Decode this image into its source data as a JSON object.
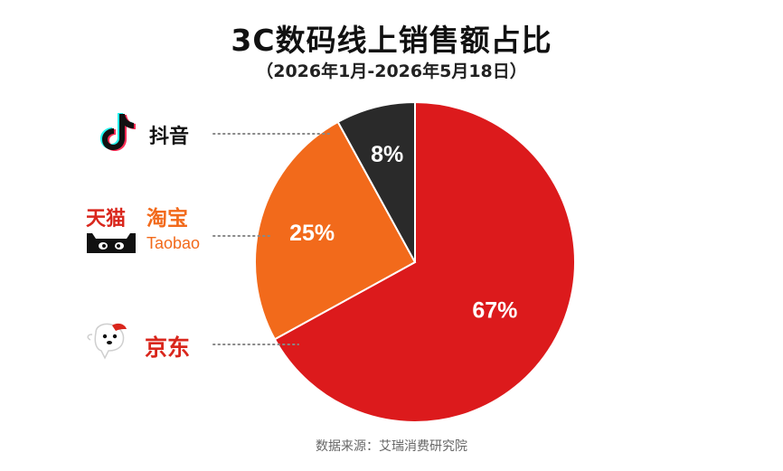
{
  "title": "3C数码线上销售额占比",
  "subtitle": "（2026年1月-2026年5月18日）",
  "source": "数据来源：艾瑞消费研究院",
  "chart_data": {
    "type": "pie",
    "title": "3C数码线上销售额占比",
    "subtitle": "（2026年1月-2026年5月18日）",
    "slices": [
      {
        "name": "京东",
        "value": 67,
        "label": "67%",
        "color": "#DC1A1C"
      },
      {
        "name": "天猫 淘宝",
        "value": 25,
        "label": "25%",
        "color": "#F26A1B"
      },
      {
        "name": "抖音",
        "value": 8,
        "label": "8%",
        "color": "#2A2A2A"
      }
    ],
    "start_angle": "12 o'clock",
    "direction": "clockwise",
    "legend": "left"
  },
  "legend": {
    "douyin": {
      "name": "抖音",
      "icon": "tiktok-logo"
    },
    "tmall_taobao": {
      "tmall": "天猫",
      "taobao_cn": "淘宝",
      "taobao_en": "Taobao",
      "icon": "tmall-cat-logo",
      "color": "#D9261C",
      "taobao_color": "#F26A1B"
    },
    "jd": {
      "name": "京东",
      "icon": "jd-dog-logo",
      "color": "#D9261C"
    }
  }
}
